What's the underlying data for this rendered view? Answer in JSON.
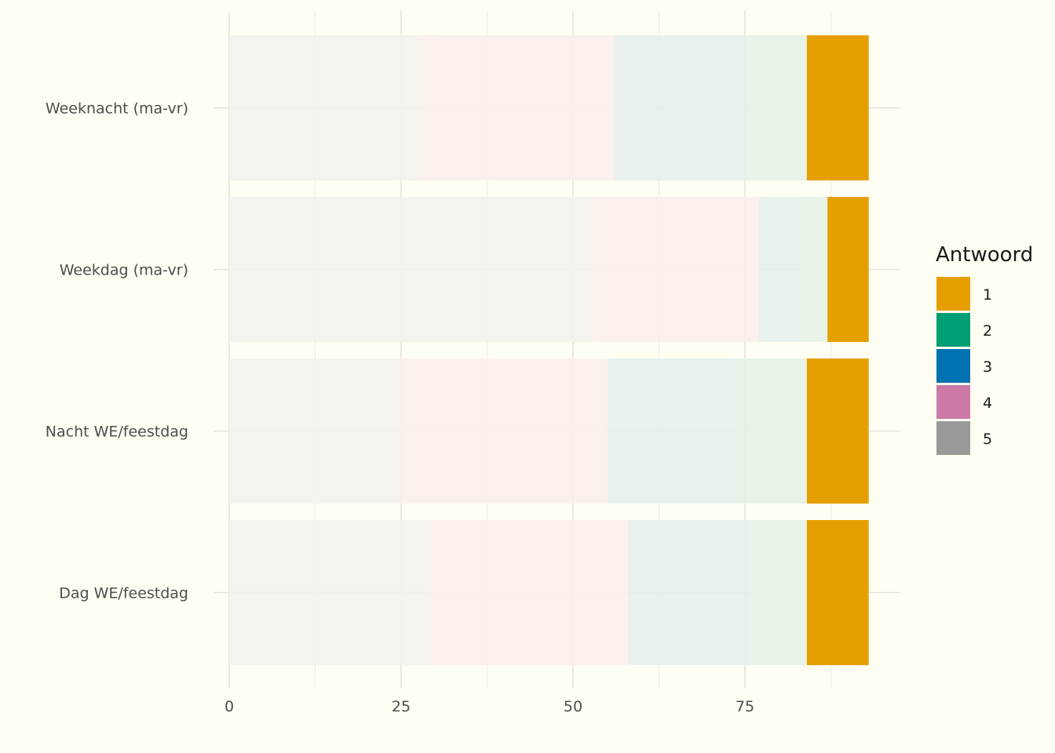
{
  "chart_data": {
    "type": "bar",
    "orientation": "horizontal",
    "stacked": true,
    "categories": [
      "Weeknacht (ma-vr)",
      "Weekdag (ma-vr)",
      "Nacht WE/feestdag",
      "Dag WE/feestdag"
    ],
    "series": [
      {
        "name": "5",
        "values": [
          28,
          53,
          25,
          29
        ]
      },
      {
        "name": "4",
        "values": [
          28,
          24,
          30,
          29
        ]
      },
      {
        "name": "3",
        "values": [
          19,
          6,
          19,
          18
        ]
      },
      {
        "name": "2",
        "values": [
          9,
          4,
          10,
          8
        ]
      },
      {
        "name": "1",
        "values": [
          9,
          6,
          9,
          9
        ]
      }
    ],
    "highlighted_series": "1",
    "title": "",
    "xlabel": "",
    "ylabel": "",
    "xlim": [
      0,
      98
    ],
    "x_ticks": [
      0,
      25,
      50,
      75
    ],
    "grid": true,
    "legend": {
      "title": "Antwoord",
      "position": "right",
      "order": [
        "1",
        "2",
        "3",
        "4",
        "5"
      ]
    },
    "colors": {
      "1": "#E69F00",
      "2": "#009E73",
      "3": "#0072B2",
      "4": "#CC79A7",
      "5": "#999999"
    },
    "faded_colors": {
      "2": "#e6f2e6",
      "3": "#e5efec",
      "4": "#f9efec",
      "5": "#f3f2ec"
    }
  }
}
